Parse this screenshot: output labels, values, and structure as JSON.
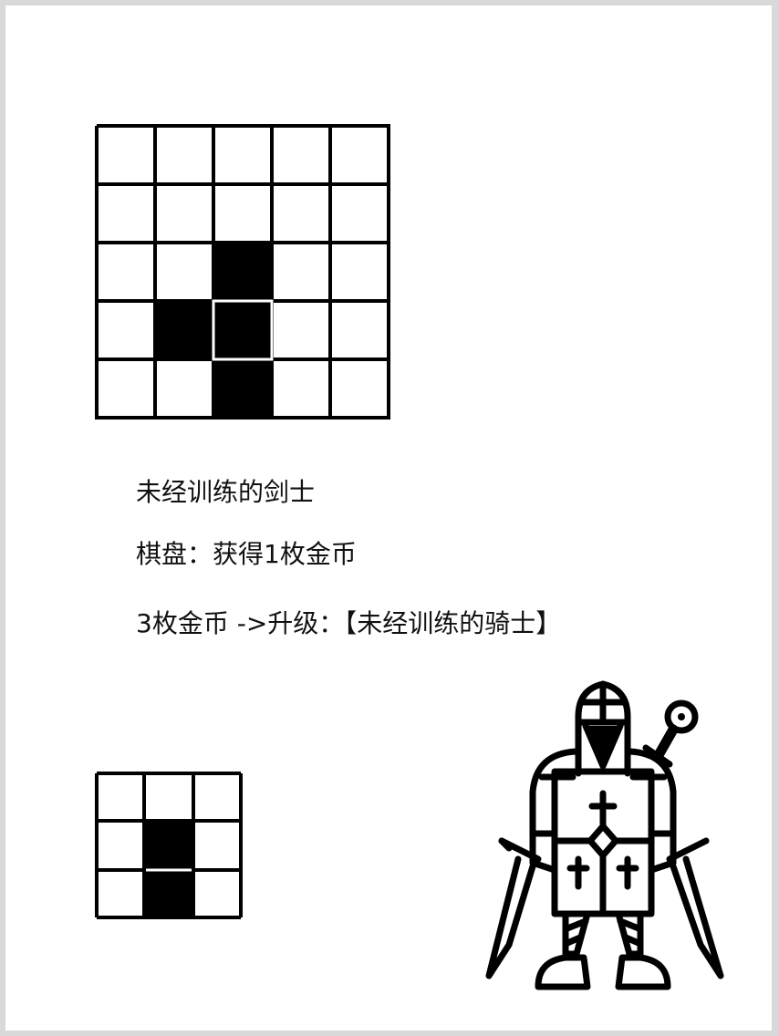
{
  "card": {
    "name": "未经训练的剑士",
    "board_effect": "棋盘：获得1枚金币",
    "upgrade": "3枚金币 ->升级：【未经训练的骑士】"
  },
  "icons": {
    "pattern_main": "movement-pattern-5x5-icon",
    "pattern_small": "movement-pattern-3x3-icon",
    "portrait": "armored-knight-with-swords-icon"
  },
  "colors": {
    "ink": "#000000",
    "paper": "#ffffff",
    "frame": "#d9d9d9"
  }
}
